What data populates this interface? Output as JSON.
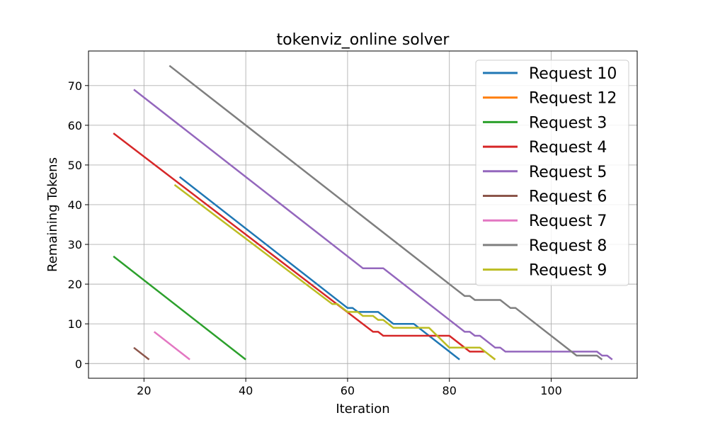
{
  "chart_data": {
    "type": "line",
    "title": "tokenviz_online solver",
    "xlabel": "Iteration",
    "ylabel": "Remaining Tokens",
    "xlim": [
      9.1,
      116.9
    ],
    "ylim": [
      -3.7,
      78.7
    ],
    "xticks": [
      20,
      40,
      60,
      80,
      100
    ],
    "yticks": [
      0,
      10,
      20,
      30,
      40,
      50,
      60,
      70
    ],
    "grid": true,
    "legend_position": "upper-right",
    "series": [
      {
        "name": "Request 10",
        "color": "#1f77b4",
        "x": [
          27,
          60,
          61,
          62,
          66,
          69,
          73,
          82
        ],
        "y": [
          47,
          14,
          14,
          13,
          13,
          10,
          10,
          1
        ]
      },
      {
        "name": "Request 12",
        "color": "#ff7f0e",
        "x": [
          88,
          89
        ],
        "y": [
          2,
          1
        ]
      },
      {
        "name": "Request 3",
        "color": "#2ca02c",
        "x": [
          14,
          40
        ],
        "y": [
          27,
          1
        ]
      },
      {
        "name": "Request 4",
        "color": "#d62728",
        "x": [
          14,
          65,
          66,
          67,
          80,
          84,
          87
        ],
        "y": [
          58,
          8,
          8,
          7,
          7,
          3,
          3
        ]
      },
      {
        "name": "Request 5",
        "color": "#9467bd",
        "x": [
          18,
          63,
          67,
          83,
          84,
          85,
          86,
          88,
          89,
          90,
          91,
          109,
          110,
          111,
          112
        ],
        "y": [
          69,
          24,
          24,
          8,
          8,
          7,
          7,
          5,
          4,
          4,
          3,
          3,
          2,
          2,
          1
        ]
      },
      {
        "name": "Request 6",
        "color": "#8c564b",
        "x": [
          18,
          21
        ],
        "y": [
          4,
          1
        ]
      },
      {
        "name": "Request 7",
        "color": "#e377c2",
        "x": [
          22,
          29
        ],
        "y": [
          8,
          1
        ]
      },
      {
        "name": "Request 8",
        "color": "#7f7f7f",
        "x": [
          25,
          83,
          84,
          85,
          90,
          92,
          93,
          105,
          109,
          110
        ],
        "y": [
          75,
          17,
          17,
          16,
          16,
          14,
          14,
          2,
          2,
          1
        ]
      },
      {
        "name": "Request 9",
        "color": "#bcbd22",
        "x": [
          26,
          57,
          58,
          60,
          61,
          62,
          63,
          65,
          66,
          67,
          69,
          75,
          76,
          80,
          86,
          89
        ],
        "y": [
          45,
          15,
          15,
          13,
          13,
          13,
          12,
          12,
          11,
          11,
          9,
          9,
          9,
          4,
          4,
          1
        ]
      }
    ]
  }
}
